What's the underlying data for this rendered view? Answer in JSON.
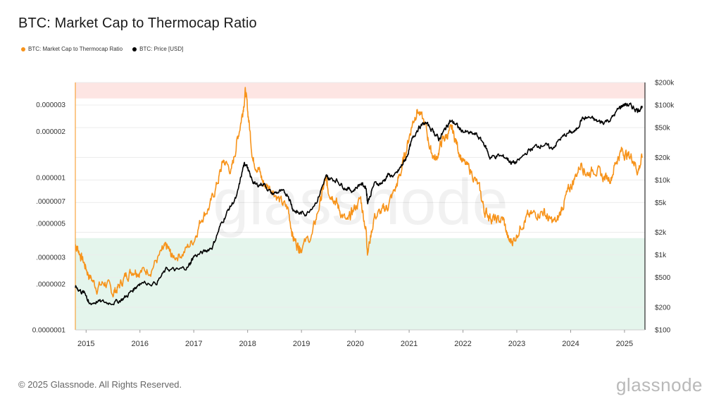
{
  "page": {
    "title": "BTC: Market Cap to Thermocap Ratio",
    "footer": "© 2025 Glassnode. All Rights Reserved.",
    "brand": "glassnode",
    "watermark": "glassnode"
  },
  "colors": {
    "ratio": "#f7931a",
    "price": "#000000",
    "upper_band": "#fde5e3",
    "lower_band": "#e4f5ec",
    "grid": "#ececec"
  },
  "chart_data": {
    "type": "line",
    "title": "BTC: Market Cap to Thermocap Ratio",
    "legend": [
      {
        "name": "BTC: Market Cap to Thermocap Ratio",
        "color": "#f7931a"
      },
      {
        "name": "BTC: Price [USD]",
        "color": "#000000"
      }
    ],
    "x_ticks": [
      "2015",
      "2016",
      "2017",
      "2018",
      "2019",
      "2020",
      "2021",
      "2022",
      "2023",
      "2024",
      "2025"
    ],
    "x_range": [
      2014.8,
      2025.38
    ],
    "left_axis": {
      "scale": "log",
      "range": [
        1e-07,
        4.2e-06
      ],
      "ticks": [
        {
          "value": 3e-06,
          "label": "0.000003"
        },
        {
          "value": 2e-06,
          "label": "0.000002"
        },
        {
          "value": 1e-06,
          "label": "0.000001"
        },
        {
          "value": 7e-07,
          "label": ".0000007"
        },
        {
          "value": 5e-07,
          "label": ".0000005"
        },
        {
          "value": 3e-07,
          "label": ".0000003"
        },
        {
          "value": 2e-07,
          "label": ".0000002"
        },
        {
          "value": 1e-07,
          "label": "0.0000001"
        }
      ]
    },
    "right_axis": {
      "scale": "log",
      "range": [
        100,
        200000
      ],
      "ticks": [
        {
          "value": 200000,
          "label": "$200k"
        },
        {
          "value": 100000,
          "label": "$100k"
        },
        {
          "value": 50000,
          "label": "$50k"
        },
        {
          "value": 20000,
          "label": "$20k"
        },
        {
          "value": 10000,
          "label": "$10k"
        },
        {
          "value": 5000,
          "label": "$5k"
        },
        {
          "value": 2000,
          "label": "$2k"
        },
        {
          "value": 1000,
          "label": "$1k"
        },
        {
          "value": 500,
          "label": "$500"
        },
        {
          "value": 200,
          "label": "$200"
        },
        {
          "value": 100,
          "label": "$100"
        }
      ]
    },
    "bands": [
      {
        "name": "upper-band",
        "from": 3.3e-06,
        "to": 4.2e-06
      },
      {
        "name": "lower-band",
        "from": 1e-07,
        "to": 4e-07
      }
    ],
    "series": [
      {
        "name": "BTC: Market Cap to Thermocap Ratio",
        "axis": "left",
        "x": [
          2014.8,
          2014.85,
          2014.95,
          2015.05,
          2015.2,
          2015.35,
          2015.5,
          2015.6,
          2015.75,
          2015.9,
          2016.0,
          2016.2,
          2016.4,
          2016.5,
          2016.6,
          2016.8,
          2017.0,
          2017.15,
          2017.3,
          2017.45,
          2017.55,
          2017.7,
          2017.8,
          2017.9,
          2017.96,
          2018.02,
          2018.1,
          2018.2,
          2018.3,
          2018.45,
          2018.6,
          2018.75,
          2018.85,
          2018.95,
          2019.0,
          2019.2,
          2019.35,
          2019.45,
          2019.5,
          2019.6,
          2019.7,
          2019.85,
          2019.95,
          2020.1,
          2020.2,
          2020.23,
          2020.35,
          2020.5,
          2020.6,
          2020.75,
          2020.85,
          2020.95,
          2021.05,
          2021.15,
          2021.3,
          2021.4,
          2021.5,
          2021.6,
          2021.7,
          2021.8,
          2021.9,
          2022.0,
          2022.15,
          2022.3,
          2022.4,
          2022.5,
          2022.6,
          2022.75,
          2022.85,
          2022.95,
          2023.1,
          2023.2,
          2023.35,
          2023.5,
          2023.6,
          2023.75,
          2023.85,
          2023.95,
          2024.05,
          2024.2,
          2024.3,
          2024.45,
          2024.6,
          2024.75,
          2024.85,
          2024.95,
          2025.05,
          2025.15,
          2025.25,
          2025.33
        ],
        "y": [
          3.6e-07,
          3.4e-07,
          2.8e-07,
          2.3e-07,
          1.9e-07,
          2.05e-07,
          1.75e-07,
          1.9e-07,
          2.3e-07,
          2.5e-07,
          2.4e-07,
          2.5e-07,
          3.2e-07,
          3.5e-07,
          3e-07,
          3.2e-07,
          3.9e-07,
          5.5e-07,
          6.5e-07,
          9.5e-07,
          1.3e-06,
          1.1e-06,
          1.7e-06,
          2.6e-06,
          3.7e-06,
          2.4e-06,
          1.3e-06,
          1.15e-06,
          9e-07,
          8.5e-07,
          7e-07,
          6.2e-07,
          4e-07,
          3.5e-07,
          3.5e-07,
          4.2e-07,
          7e-07,
          9.8e-07,
          8.2e-07,
          7.5e-07,
          6.2e-07,
          5e-07,
          6e-07,
          7.2e-07,
          4.5e-07,
          3.2e-07,
          5.5e-07,
          6e-07,
          6.5e-07,
          8.5e-07,
          1.1e-06,
          1.55e-06,
          2.2e-06,
          2.8e-06,
          2.2e-06,
          1.5e-06,
          1.3e-06,
          1.7e-06,
          1.9e-06,
          2.05e-06,
          1.6e-06,
          1.25e-06,
          1.1e-06,
          8.5e-07,
          6e-07,
          5.6e-07,
          5.2e-07,
          5.3e-07,
          3.8e-07,
          3.9e-07,
          5e-07,
          5.5e-07,
          5.8e-07,
          6e-07,
          5.2e-07,
          5.1e-07,
          6.5e-07,
          8e-07,
          9.5e-07,
          1.25e-06,
          1.05e-06,
          1.15e-06,
          1e-06,
          1e-06,
          1.3e-06,
          1.5e-06,
          1.4e-06,
          1.35e-06,
          1.1e-06,
          1.35e-06
        ]
      },
      {
        "name": "BTC: Price [USD]",
        "axis": "right",
        "x": [
          2014.8,
          2014.9,
          2015.0,
          2015.05,
          2015.2,
          2015.4,
          2015.6,
          2015.75,
          2015.9,
          2016.0,
          2016.3,
          2016.5,
          2016.7,
          2016.9,
          2017.0,
          2017.2,
          2017.35,
          2017.5,
          2017.65,
          2017.8,
          2017.92,
          2017.97,
          2018.05,
          2018.15,
          2018.3,
          2018.45,
          2018.6,
          2018.75,
          2018.85,
          2018.95,
          2019.1,
          2019.3,
          2019.45,
          2019.5,
          2019.65,
          2019.8,
          2019.95,
          2020.1,
          2020.2,
          2020.23,
          2020.35,
          2020.5,
          2020.6,
          2020.75,
          2020.85,
          2020.95,
          2021.05,
          2021.15,
          2021.3,
          2021.45,
          2021.55,
          2021.65,
          2021.75,
          2021.85,
          2021.95,
          2022.1,
          2022.25,
          2022.4,
          2022.5,
          2022.65,
          2022.8,
          2022.9,
          2023.0,
          2023.2,
          2023.35,
          2023.5,
          2023.65,
          2023.8,
          2023.95,
          2024.1,
          2024.2,
          2024.35,
          2024.5,
          2024.6,
          2024.75,
          2024.9,
          2024.97,
          2025.05,
          2025.15,
          2025.25,
          2025.33
        ],
        "y": [
          380,
          330,
          300,
          220,
          240,
          230,
          240,
          280,
          360,
          430,
          420,
          650,
          620,
          700,
          960,
          1100,
          1300,
          2500,
          4100,
          6000,
          15000,
          17000,
          11000,
          8500,
          9000,
          6500,
          7000,
          6400,
          4000,
          3600,
          3600,
          5500,
          11000,
          10500,
          10000,
          8000,
          7200,
          9000,
          8000,
          5000,
          8800,
          9200,
          11500,
          11500,
          15000,
          20000,
          33000,
          48000,
          58000,
          45000,
          35000,
          45000,
          61000,
          57000,
          47000,
          42000,
          40000,
          30000,
          20000,
          21000,
          20000,
          17000,
          17000,
          24000,
          28000,
          30000,
          26000,
          35000,
          42000,
          45000,
          65000,
          68000,
          60000,
          59000,
          65000,
          90000,
          100000,
          102000,
          94000,
          85000,
          97000
        ]
      }
    ]
  }
}
